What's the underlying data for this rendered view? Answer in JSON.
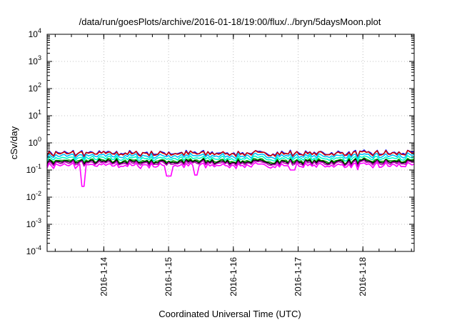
{
  "chart_data": {
    "type": "line",
    "title": "/data/run/goesPlots/archive/2016-01-18/19:00/flux/../bryn/5daysMoon.plot",
    "xlabel": "Coordinated Universal Time (UTC)",
    "ylabel": "cSv/day",
    "yscale": "log",
    "ylim": [
      0.0001,
      10000
    ],
    "xlim": [
      "2016-01-13 03:00",
      "2016-01-18 19:00"
    ],
    "grid": true,
    "y_ticks": [
      {
        "value": 0.0001,
        "base": "10",
        "exp": "-4"
      },
      {
        "value": 0.001,
        "base": "10",
        "exp": "-3"
      },
      {
        "value": 0.01,
        "base": "10",
        "exp": "-2"
      },
      {
        "value": 0.1,
        "base": "10",
        "exp": "-1"
      },
      {
        "value": 1,
        "base": "10",
        "exp": "0"
      },
      {
        "value": 10,
        "base": "10",
        "exp": "1"
      },
      {
        "value": 100,
        "base": "10",
        "exp": "2"
      },
      {
        "value": 1000,
        "base": "10",
        "exp": "3"
      },
      {
        "value": 10000,
        "base": "10",
        "exp": "4"
      }
    ],
    "x_ticks": [
      "2016-1-14",
      "2016-1-15",
      "2016-1-16",
      "2016-1-17",
      "2016-1-18"
    ],
    "series": [
      {
        "color": "#0000ff",
        "base": 0.42,
        "values": [
          0.4,
          0.42,
          0.45,
          0.38,
          0.44,
          0.41,
          0.46,
          0.4,
          0.43,
          0.42
        ]
      },
      {
        "color": "#cc0000",
        "base": 0.4,
        "values": [
          0.39,
          0.41,
          0.43,
          0.37,
          0.42,
          0.4,
          0.44,
          0.39,
          0.41,
          0.4
        ]
      },
      {
        "color": "#00bfff",
        "base": 0.33,
        "values": [
          0.32,
          0.34,
          0.35,
          0.31,
          0.33,
          0.33,
          0.35,
          0.32,
          0.34,
          0.33
        ]
      },
      {
        "color": "#00ffcc",
        "base": 0.27,
        "values": [
          0.26,
          0.28,
          0.28,
          0.25,
          0.27,
          0.27,
          0.28,
          0.26,
          0.27,
          0.27
        ]
      },
      {
        "color": "#009900",
        "base": 0.22,
        "values": [
          0.21,
          0.22,
          0.23,
          0.21,
          0.22,
          0.22,
          0.23,
          0.21,
          0.22,
          0.22
        ]
      },
      {
        "color": "#000000",
        "base": 0.2,
        "values": [
          0.19,
          0.2,
          0.21,
          0.19,
          0.2,
          0.2,
          0.21,
          0.19,
          0.2,
          0.2
        ]
      },
      {
        "color": "#b000b0",
        "base": 0.18,
        "values": [
          0.17,
          0.18,
          0.19,
          0.17,
          0.18,
          0.18,
          0.19,
          0.17,
          0.18,
          0.18
        ]
      },
      {
        "color": "#ff00ff",
        "base": 0.15,
        "values": [
          0.14,
          0.15,
          0.16,
          0.13,
          0.15,
          0.15,
          0.16,
          0.14,
          0.15,
          0.15
        ]
      }
    ],
    "dips": [
      {
        "x": "2016-01-13 16:00",
        "y": 0.025
      },
      {
        "x": "2016-01-15 00:00",
        "y": 0.06
      },
      {
        "x": "2016-01-15 10:00",
        "y": 0.065
      },
      {
        "x": "2016-01-16 22:00",
        "y": 0.1
      }
    ]
  }
}
